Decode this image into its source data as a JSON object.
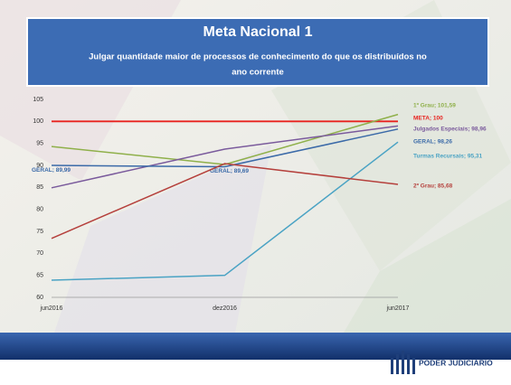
{
  "header": {
    "title": "Meta Nacional 1",
    "subtitle": "Julgar quantidade maior de processos de conhecimento do que os distribuídos no",
    "subtitle_line2": "ano corrente"
  },
  "chart_data": {
    "type": "line",
    "categories": [
      "jun2016",
      "dez2016",
      "jun2017"
    ],
    "ylim": [
      60,
      105
    ],
    "yticks": [
      60,
      65,
      70,
      75,
      80,
      85,
      90,
      95,
      100,
      105
    ],
    "series": [
      {
        "name": "META",
        "color": "#e8231f",
        "values": [
          100,
          100,
          100
        ],
        "value_labels": [
          null,
          null,
          "META; 100"
        ]
      },
      {
        "name": "1º Grau",
        "color": "#8fb04a",
        "values": [
          94.3,
          90.2,
          101.59
        ],
        "value_labels": [
          null,
          null,
          "1º Grau; 101,59"
        ]
      },
      {
        "name": "Julgados Especiais",
        "color": "#7a5a9c",
        "values": [
          84.9,
          93.7,
          98.96
        ],
        "value_labels": [
          null,
          null,
          "Julgados Especiais; 98,96"
        ]
      },
      {
        "name": "GERAL",
        "color": "#3b6aa8",
        "values": [
          89.99,
          89.69,
          98.26
        ],
        "value_labels": [
          "GERAL; 89,99",
          "GERAL; 89,69",
          "GERAL; 98,26"
        ]
      },
      {
        "name": "Turmas Recursais",
        "color": "#4aa3c4",
        "values": [
          63.9,
          65,
          95.31
        ],
        "value_labels": [
          null,
          null,
          "Turmas Recursais; 95,31"
        ]
      },
      {
        "name": "2º Grau",
        "color": "#b5403c",
        "values": [
          73.4,
          90.4,
          85.68
        ],
        "value_labels": [
          null,
          null,
          "2º Grau; 85,68"
        ]
      }
    ]
  },
  "footer": {
    "brand": "PODER JUDICIÁRIO"
  }
}
